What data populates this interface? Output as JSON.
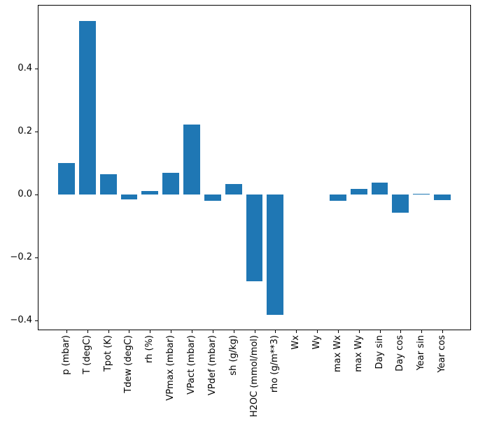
{
  "figure": {
    "background": "#ffffff",
    "spine_color": "#000000",
    "tick_color": "#000000"
  },
  "chart_data": {
    "type": "bar",
    "title": "",
    "xlabel": "",
    "ylabel": "",
    "grid": false,
    "legend": null,
    "bar_color": "#1f77b4",
    "bar_rel_width": 0.8,
    "x_pad": 1.34,
    "x_tick_rotation": 90,
    "ylim": [
      -0.429,
      0.599
    ],
    "yticks": [
      -0.4,
      -0.2,
      0.0,
      0.2,
      0.4
    ],
    "ytick_labels": [
      "−0.4",
      "−0.2",
      "0.0",
      "0.2",
      "0.4"
    ],
    "categories": [
      "p (mbar)",
      "T (degC)",
      "Tpot (K)",
      "Tdew (degC)",
      "rh (%)",
      "VPmax (mbar)",
      "VPact (mbar)",
      "VPdef (mbar)",
      "sh (g/kg)",
      "H2OC (mmol/mol)",
      "rho (g/m**3)",
      "Wx",
      "Wy",
      "max Wx",
      "max Wy",
      "Day sin",
      "Day cos",
      "Year sin",
      "Year cos"
    ],
    "values": [
      0.1,
      0.55,
      0.065,
      -0.016,
      0.011,
      0.068,
      0.221,
      -0.021,
      0.033,
      -0.276,
      -0.383,
      0.0,
      0.0,
      -0.021,
      0.017,
      0.038,
      -0.058,
      0.002,
      -0.019
    ]
  }
}
